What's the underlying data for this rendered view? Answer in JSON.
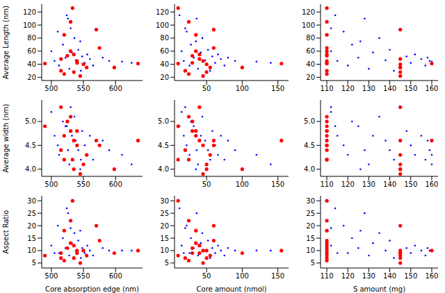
{
  "chart_data": [
    {
      "type": "scatter",
      "ylabel": "Average Length (nm)",
      "grid": false,
      "xlim": [
        485,
        642
      ],
      "xticks": [
        500,
        550,
        600
      ],
      "ylim": [
        15,
        132
      ],
      "yticks": [
        20,
        40,
        60,
        80,
        100,
        120
      ],
      "series": [
        {
          "color": "#0000ff",
          "marker": "point",
          "x": [
            500,
            505,
            510,
            512,
            518,
            522,
            526,
            528,
            532,
            536,
            538,
            542,
            546,
            548,
            552,
            556,
            560,
            565,
            580,
            590,
            610,
            625,
            530,
            524,
            545
          ],
          "values": [
            60,
            45,
            90,
            38,
            70,
            50,
            110,
            33,
            58,
            80,
            46,
            62,
            30,
            52,
            42,
            55,
            48,
            38,
            50,
            45,
            44,
            42,
            95,
            115,
            75
          ]
        },
        {
          "color": "#ff0000",
          "marker": "circle",
          "x": [
            490,
            515,
            520,
            533,
            525,
            530,
            535,
            540,
            545,
            550,
            555,
            570,
            575,
            598,
            635,
            520,
            515,
            530,
            535,
            540
          ],
          "values": [
            41,
            30,
            25,
            126,
            53,
            60,
            55,
            45,
            22,
            40,
            35,
            93,
            65,
            35,
            41,
            85,
            48,
            105,
            28,
            42
          ]
        }
      ]
    },
    {
      "type": "scatter",
      "grid": false,
      "xlim": [
        5,
        165
      ],
      "xticks": [
        50,
        100,
        150
      ],
      "ylim": [
        15,
        132
      ],
      "yticks": [
        20,
        40,
        60,
        80,
        100,
        120
      ],
      "series": [
        {
          "color": "#0000ff",
          "marker": "point",
          "x": [
            15,
            18,
            22,
            26,
            28,
            32,
            36,
            38,
            42,
            44,
            48,
            52,
            55,
            58,
            62,
            66,
            70,
            75,
            80,
            90,
            120,
            140,
            20,
            12,
            35
          ],
          "values": [
            60,
            45,
            90,
            38,
            70,
            50,
            110,
            33,
            58,
            80,
            46,
            62,
            30,
            52,
            42,
            55,
            48,
            38,
            50,
            45,
            44,
            42,
            95,
            115,
            75
          ]
        },
        {
          "color": "#ff0000",
          "marker": "circle",
          "x": [
            10,
            20,
            25,
            10,
            30,
            35,
            40,
            45,
            45,
            50,
            55,
            60,
            60,
            100,
            155,
            35,
            40,
            25,
            50,
            30
          ],
          "values": [
            41,
            30,
            25,
            126,
            53,
            60,
            55,
            45,
            22,
            40,
            35,
            93,
            65,
            35,
            41,
            85,
            48,
            105,
            28,
            42
          ]
        }
      ]
    },
    {
      "type": "scatter",
      "grid": false,
      "xlim": [
        107,
        163
      ],
      "xticks": [
        110,
        120,
        130,
        140,
        150,
        160
      ],
      "ylim": [
        15,
        132
      ],
      "yticks": [
        20,
        40,
        60,
        80,
        100,
        120
      ],
      "series": [
        {
          "color": "#0000ff",
          "marker": "point",
          "x": [
            112,
            115,
            118,
            120,
            122,
            125,
            128,
            130,
            132,
            135,
            138,
            140,
            142,
            148,
            150,
            152,
            155,
            157,
            158,
            159,
            160,
            160,
            112,
            114,
            126
          ],
          "values": [
            60,
            45,
            90,
            38,
            70,
            50,
            110,
            33,
            58,
            80,
            46,
            62,
            30,
            52,
            42,
            55,
            48,
            38,
            50,
            45,
            44,
            42,
            95,
            115,
            75
          ]
        },
        {
          "color": "#ff0000",
          "marker": "circle",
          "x": [
            110,
            110,
            110,
            110,
            110,
            110,
            110,
            110,
            145,
            145,
            145,
            145,
            110,
            145,
            160,
            110,
            145,
            110,
            145,
            110
          ],
          "values": [
            41,
            30,
            25,
            126,
            53,
            60,
            55,
            45,
            22,
            40,
            35,
            93,
            65,
            35,
            41,
            85,
            48,
            105,
            28,
            42
          ]
        }
      ]
    },
    {
      "type": "scatter",
      "ylabel": "Average width (nm)",
      "grid": false,
      "xlim": [
        485,
        642
      ],
      "xticks": [
        500,
        550,
        600
      ],
      "ylim": [
        3.85,
        5.45
      ],
      "yticks": [
        {
          "value": 4,
          "label": "4.0"
        },
        4.5,
        {
          "value": 5,
          "label": "5.0"
        }
      ],
      "series": [
        {
          "color": "#0000ff",
          "marker": "point",
          "x": [
            500,
            505,
            510,
            512,
            518,
            522,
            526,
            528,
            532,
            536,
            538,
            542,
            546,
            548,
            552,
            556,
            560,
            565,
            580,
            590,
            610,
            625,
            530,
            524,
            545
          ],
          "values": [
            5.2,
            4.7,
            4.5,
            4.3,
            5.0,
            4.9,
            4.4,
            4.1,
            4.7,
            5.1,
            4.6,
            4.4,
            4.2,
            4.8,
            4.5,
            4.3,
            4.7,
            4.2,
            4.6,
            4.4,
            4.3,
            4.1,
            5.3,
            4.9,
            4.0
          ]
        },
        {
          "color": "#ff0000",
          "marker": "circle",
          "x": [
            490,
            515,
            520,
            533,
            525,
            530,
            535,
            540,
            545,
            550,
            555,
            570,
            575,
            598,
            635,
            520,
            515,
            530,
            535,
            540
          ],
          "values": [
            4.9,
            4.4,
            4.2,
            4.2,
            5.0,
            4.8,
            4.6,
            4.5,
            3.9,
            4.1,
            4.3,
            4.6,
            4.5,
            4.0,
            4.6,
            4.7,
            5.3,
            5.1,
            4.0,
            4.8
          ]
        }
      ]
    },
    {
      "type": "scatter",
      "grid": false,
      "xlim": [
        5,
        165
      ],
      "xticks": [
        50,
        100,
        150
      ],
      "ylim": [
        3.85,
        5.45
      ],
      "yticks": [
        {
          "value": 4,
          "label": "4.0"
        },
        4.5,
        {
          "value": 5,
          "label": "5.0"
        }
      ],
      "series": [
        {
          "color": "#0000ff",
          "marker": "point",
          "x": [
            15,
            18,
            22,
            26,
            28,
            32,
            36,
            38,
            42,
            44,
            48,
            52,
            55,
            58,
            62,
            66,
            70,
            75,
            80,
            90,
            120,
            140,
            20,
            12,
            35
          ],
          "values": [
            5.2,
            4.7,
            4.5,
            4.3,
            5.0,
            4.9,
            4.4,
            4.1,
            4.7,
            5.1,
            4.6,
            4.4,
            4.2,
            4.8,
            4.5,
            4.3,
            4.7,
            4.2,
            4.6,
            4.4,
            4.3,
            4.1,
            5.3,
            4.9,
            4.0
          ]
        },
        {
          "color": "#ff0000",
          "marker": "circle",
          "x": [
            10,
            20,
            25,
            10,
            30,
            35,
            40,
            45,
            45,
            50,
            55,
            60,
            60,
            100,
            155,
            35,
            40,
            25,
            50,
            30
          ],
          "values": [
            4.9,
            4.4,
            4.2,
            4.2,
            5.0,
            4.8,
            4.6,
            4.5,
            3.9,
            4.1,
            4.3,
            4.6,
            4.5,
            4.0,
            4.6,
            4.7,
            5.3,
            5.1,
            4.0,
            4.8
          ]
        }
      ]
    },
    {
      "type": "scatter",
      "grid": false,
      "xlim": [
        107,
        163
      ],
      "xticks": [
        110,
        120,
        130,
        140,
        150,
        160
      ],
      "ylim": [
        3.85,
        5.45
      ],
      "yticks": [
        {
          "value": 4,
          "label": "4.0"
        },
        4.5,
        {
          "value": 5,
          "label": "5.0"
        }
      ],
      "series": [
        {
          "color": "#0000ff",
          "marker": "point",
          "x": [
            112,
            115,
            118,
            120,
            122,
            125,
            128,
            130,
            132,
            135,
            138,
            140,
            142,
            148,
            150,
            152,
            155,
            157,
            158,
            159,
            160,
            160,
            112,
            114,
            126
          ],
          "values": [
            5.2,
            4.7,
            4.5,
            4.3,
            5.0,
            4.9,
            4.4,
            4.1,
            4.7,
            5.1,
            4.6,
            4.4,
            4.2,
            4.8,
            4.5,
            4.3,
            4.7,
            4.2,
            4.6,
            4.4,
            4.3,
            4.1,
            5.3,
            4.9,
            4.0
          ]
        },
        {
          "color": "#ff0000",
          "marker": "circle",
          "x": [
            110,
            110,
            110,
            110,
            110,
            110,
            110,
            110,
            145,
            145,
            145,
            145,
            110,
            145,
            160,
            110,
            145,
            110,
            145,
            110
          ],
          "values": [
            4.9,
            4.4,
            4.2,
            4.2,
            5.0,
            4.8,
            4.6,
            4.5,
            3.9,
            4.1,
            4.3,
            4.6,
            4.5,
            4.0,
            4.6,
            4.7,
            5.3,
            5.1,
            4.0,
            4.8
          ]
        }
      ]
    },
    {
      "type": "scatter",
      "ylabel": "Aspect Ratio",
      "xlabel": "Core absorption edge (nm)",
      "grid": false,
      "xlim": [
        485,
        642
      ],
      "xticks": [
        500,
        550,
        600
      ],
      "ylim": [
        3,
        32
      ],
      "yticks": [
        5,
        10,
        15,
        20,
        25,
        30
      ],
      "series": [
        {
          "color": "#0000ff",
          "marker": "point",
          "x": [
            500,
            505,
            510,
            512,
            518,
            522,
            526,
            528,
            532,
            536,
            538,
            542,
            546,
            548,
            552,
            556,
            560,
            565,
            580,
            590,
            610,
            625,
            530,
            524,
            545
          ],
          "values": [
            12,
            9,
            20,
            9,
            15,
            11,
            25,
            8,
            13,
            17,
            10,
            14,
            7,
            11,
            9,
            12,
            10,
            8,
            11,
            10,
            10,
            10,
            19,
            27,
            18
          ]
        },
        {
          "color": "#ff0000",
          "marker": "circle",
          "x": [
            490,
            515,
            520,
            533,
            525,
            530,
            535,
            540,
            545,
            550,
            555,
            570,
            575,
            598,
            635,
            520,
            515,
            530,
            535,
            540
          ],
          "values": [
            8,
            7,
            6,
            30,
            11,
            13,
            12,
            10,
            5,
            10,
            8,
            20,
            14,
            9,
            10,
            18,
            9,
            22,
            7,
            9
          ]
        }
      ]
    },
    {
      "type": "scatter",
      "xlabel": "Core amount (nmol)",
      "grid": false,
      "xlim": [
        5,
        165
      ],
      "xticks": [
        50,
        100,
        150
      ],
      "ylim": [
        3,
        32
      ],
      "yticks": [
        5,
        10,
        15,
        20,
        25,
        30
      ],
      "series": [
        {
          "color": "#0000ff",
          "marker": "point",
          "x": [
            15,
            18,
            22,
            26,
            28,
            32,
            36,
            38,
            42,
            44,
            48,
            52,
            55,
            58,
            62,
            66,
            70,
            75,
            80,
            90,
            120,
            140,
            20,
            12,
            35
          ],
          "values": [
            12,
            9,
            20,
            9,
            15,
            11,
            25,
            8,
            13,
            17,
            10,
            14,
            7,
            11,
            9,
            12,
            10,
            8,
            11,
            10,
            10,
            10,
            19,
            27,
            18
          ]
        },
        {
          "color": "#ff0000",
          "marker": "circle",
          "x": [
            10,
            20,
            25,
            10,
            30,
            35,
            40,
            45,
            45,
            50,
            55,
            60,
            60,
            100,
            155,
            35,
            40,
            25,
            50,
            30
          ],
          "values": [
            8,
            7,
            6,
            30,
            11,
            13,
            12,
            10,
            5,
            10,
            8,
            20,
            14,
            9,
            10,
            18,
            9,
            22,
            7,
            9
          ]
        }
      ]
    },
    {
      "type": "scatter",
      "xlabel": "S amount (mg)",
      "grid": false,
      "xlim": [
        107,
        163
      ],
      "xticks": [
        110,
        120,
        130,
        140,
        150,
        160
      ],
      "ylim": [
        3,
        32
      ],
      "yticks": [
        5,
        10,
        15,
        20,
        25,
        30
      ],
      "series": [
        {
          "color": "#0000ff",
          "marker": "point",
          "x": [
            112,
            115,
            118,
            120,
            122,
            125,
            128,
            130,
            132,
            135,
            138,
            140,
            142,
            148,
            150,
            152,
            155,
            157,
            158,
            159,
            160,
            160,
            112,
            114,
            126
          ],
          "values": [
            12,
            9,
            20,
            9,
            15,
            11,
            25,
            8,
            13,
            17,
            10,
            14,
            7,
            11,
            9,
            12,
            10,
            8,
            11,
            10,
            10,
            10,
            19,
            27,
            18
          ]
        },
        {
          "color": "#ff0000",
          "marker": "circle",
          "x": [
            110,
            110,
            110,
            110,
            110,
            110,
            110,
            110,
            145,
            145,
            145,
            145,
            110,
            145,
            160,
            110,
            145,
            110,
            145,
            110
          ],
          "values": [
            8,
            7,
            6,
            30,
            11,
            13,
            12,
            10,
            5,
            10,
            8,
            20,
            14,
            9,
            10,
            18,
            9,
            22,
            7,
            9
          ]
        }
      ]
    }
  ]
}
